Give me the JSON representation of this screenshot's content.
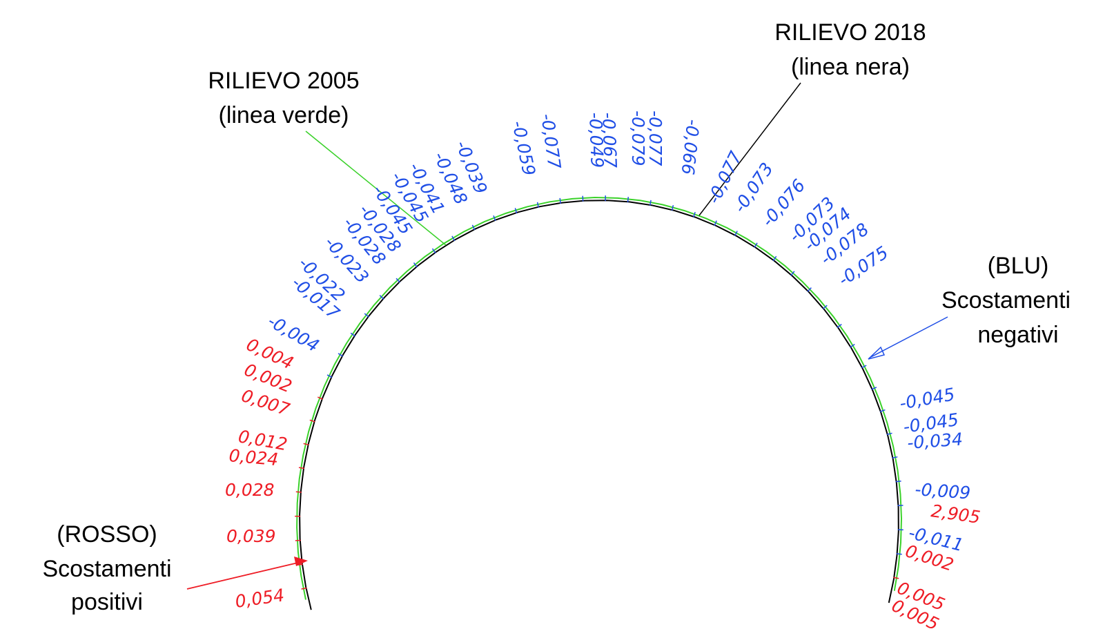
{
  "colors": {
    "positive": "#ee1c25",
    "negative": "#1f4ee6",
    "survey_2005": "#3ad12a",
    "survey_2018": "#000000"
  },
  "labels": {
    "survey_2005": {
      "line1": "RILIEVO 2005",
      "line2": "(linea verde)"
    },
    "survey_2018": {
      "line1": "RILIEVO 2018",
      "line2": "(linea nera)"
    },
    "negative_legend": {
      "line1": "(BLU)",
      "line2": "Scostamenti",
      "line3": "negativi"
    },
    "positive_legend": {
      "line1": "(ROSSO)",
      "line2": "Scostamenti",
      "line3": "positivi"
    }
  },
  "deviations": {
    "left_red": [
      "0,004",
      "0,002",
      "0,007",
      "0,012",
      "0,024",
      "0,028",
      "0,039",
      "0,054"
    ],
    "left_blue": [
      "-0,004",
      "-0,017",
      "-0,022",
      "-0,023",
      "-0,028",
      "-0,028",
      "-0,045",
      "-0,045",
      "-0,041",
      "-0,048",
      "-0,039"
    ],
    "top_blue": [
      "-0,059",
      "-0,077",
      "-0,049",
      "-0,067",
      "-0,079",
      "-0,077",
      "-0,066"
    ],
    "right_blue": [
      "-0,077",
      "-0,073",
      "-0,076",
      "-0,073",
      "-0,074",
      "-0,078",
      "-0,075"
    ],
    "lower_right_blue": [
      "-0,045",
      "-0,045",
      "-0,034",
      "-0,009"
    ],
    "lower_right_mixed": [
      {
        "value": "2,905",
        "sign": "positive"
      },
      {
        "value": "-0,011",
        "sign": "negative"
      },
      {
        "value": "0,002",
        "sign": "positive"
      },
      {
        "value": "0,005",
        "sign": "positive"
      },
      {
        "value": "0,005",
        "sign": "positive"
      }
    ]
  }
}
